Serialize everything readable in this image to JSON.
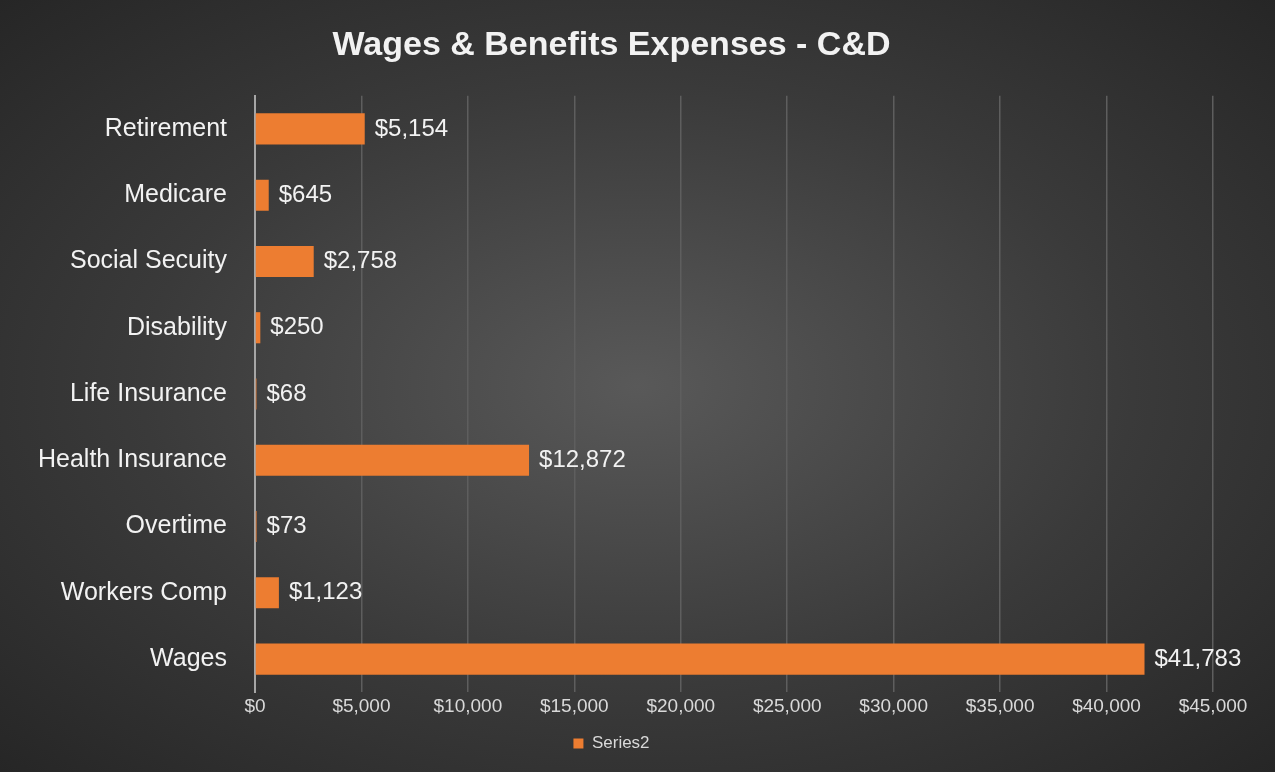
{
  "chart_data": {
    "type": "bar",
    "orientation": "horizontal",
    "title": "Wages & Benefits Expenses - C&D",
    "categories": [
      "Retirement",
      "Medicare",
      "Social Secuity",
      "Disability",
      "Life Insurance",
      "Health Insurance",
      "Overtime",
      "Workers Comp",
      "Wages"
    ],
    "series": [
      {
        "name": "Series2",
        "color": "#ed7d31",
        "values": [
          5154,
          645,
          2758,
          250,
          68,
          12872,
          73,
          1123,
          41783
        ],
        "value_labels": [
          "$5,154",
          "$645",
          "$2,758",
          "$250",
          "$68",
          "$12,872",
          "$73",
          "$1,123",
          "$41,783"
        ]
      }
    ],
    "xlim": [
      0,
      45000
    ],
    "xticks": [
      {
        "value": 0,
        "label": "$0"
      },
      {
        "value": 5000,
        "label": "$5,000"
      },
      {
        "value": 10000,
        "label": "$10,000"
      },
      {
        "value": 15000,
        "label": "$15,000"
      },
      {
        "value": 20000,
        "label": "$20,000"
      },
      {
        "value": 25000,
        "label": "$25,000"
      },
      {
        "value": 30000,
        "label": "$30,000"
      },
      {
        "value": 35000,
        "label": "$35,000"
      },
      {
        "value": 40000,
        "label": "$40,000"
      },
      {
        "value": 45000,
        "label": "$45,000"
      }
    ],
    "grid": "x",
    "legend": "bottom"
  }
}
